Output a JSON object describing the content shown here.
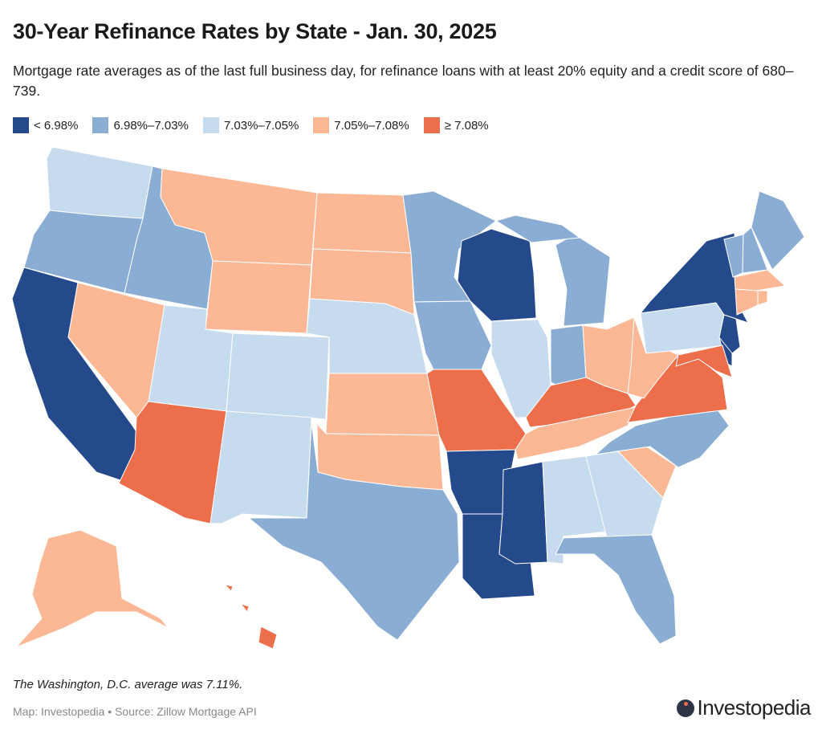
{
  "header": {
    "title": "30-Year Refinance Rates by State - Jan. 30, 2025",
    "subtitle": "Mortgage rate averages as of the last full business day, for refinance loans with at least 20% equity and a credit score of 680–739."
  },
  "legend": [
    {
      "label": "< 6.98%",
      "color": "#244a8c"
    },
    {
      "label": "6.98%–7.03%",
      "color": "#8aadd4"
    },
    {
      "label": "7.03%–7.05%",
      "color": "#c6dbed"
    },
    {
      "label": "7.05%–7.08%",
      "color": "#fcb894"
    },
    {
      "label": "≥ 7.08%",
      "color": "#ec6e4b"
    }
  ],
  "states": {
    "WA": 2,
    "OR": 1,
    "CA": 0,
    "ID": 1,
    "NV": 3,
    "MT": 3,
    "WY": 3,
    "UT": 2,
    "AZ": 4,
    "CO": 2,
    "NM": 2,
    "ND": 3,
    "SD": 3,
    "NE": 2,
    "KS": 3,
    "OK": 3,
    "TX": 1,
    "MN": 1,
    "IA": 1,
    "MO": 4,
    "AR": 0,
    "LA": 0,
    "WI": 0,
    "IL": 2,
    "MI": 1,
    "IN": 1,
    "OH": 3,
    "KY": 4,
    "TN": 3,
    "MS": 0,
    "AL": 2,
    "GA": 2,
    "FL": 1,
    "SC": 3,
    "NC": 1,
    "VA": 4,
    "WV": 3,
    "PA": 2,
    "NY": 0,
    "NJ": 0,
    "DE": 0,
    "MD": 4,
    "VT": 1,
    "NH": 1,
    "ME": 1,
    "MA": 3,
    "CT": 3,
    "RI": 3,
    "AK": 3,
    "HI": 4
  },
  "footer": {
    "note": "The Washington, D.C. average was 7.11%.",
    "source": "Map: Investopedia • Source: Zillow Mortgage API",
    "logo": "Investopedia"
  }
}
